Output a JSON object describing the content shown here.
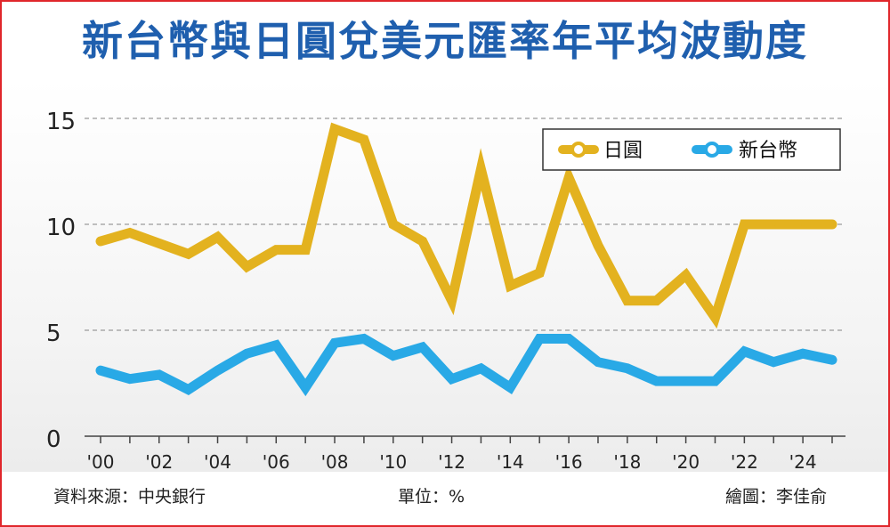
{
  "title": "新台幣與日圓兌美元匯率年平均波動度",
  "footer": {
    "source": "資料來源：中央銀行",
    "unit": "單位：%",
    "credit": "繪圖：李佳俞"
  },
  "colors": {
    "title": "#1f5fae",
    "jpy": "#e3b21f",
    "twd": "#29a9e6",
    "border": "#e0262b"
  },
  "chart_data": {
    "type": "line",
    "x": [
      2000,
      2001,
      2002,
      2003,
      2004,
      2005,
      2006,
      2007,
      2008,
      2009,
      2010,
      2011,
      2012,
      2013,
      2014,
      2015,
      2016,
      2017,
      2018,
      2019,
      2020,
      2021,
      2022,
      2023,
      2024,
      2025
    ],
    "x_tick_labels": [
      "'00",
      "'02",
      "'04",
      "'06",
      "'08",
      "'10",
      "'12",
      "'14",
      "'16",
      "'18",
      "'20",
      "'22",
      "'24"
    ],
    "x_tick_years": [
      2000,
      2002,
      2004,
      2006,
      2008,
      2010,
      2012,
      2014,
      2016,
      2018,
      2020,
      2022,
      2024
    ],
    "y_ticks": [
      0,
      5,
      10,
      15
    ],
    "ylim": [
      0,
      15
    ],
    "grid": "dashed horizontal",
    "legend_position": "top-right",
    "series": [
      {
        "name": "日圓",
        "color": "#e3b21f",
        "values": [
          9.2,
          9.6,
          9.1,
          8.6,
          9.4,
          8.0,
          8.8,
          8.8,
          14.5,
          14.0,
          10.0,
          9.2,
          6.4,
          12.6,
          7.1,
          7.7,
          12.2,
          9.0,
          6.4,
          6.4,
          7.6,
          5.6,
          10.0,
          10.0,
          10.0,
          10.0
        ]
      },
      {
        "name": "新台幣",
        "color": "#29a9e6",
        "values": [
          3.1,
          2.7,
          2.9,
          2.2,
          3.1,
          3.9,
          4.3,
          2.3,
          4.4,
          4.6,
          3.8,
          4.2,
          2.7,
          3.2,
          2.3,
          4.6,
          4.6,
          3.5,
          3.2,
          2.6,
          2.6,
          2.6,
          4.0,
          3.5,
          3.9,
          3.6
        ]
      }
    ]
  }
}
